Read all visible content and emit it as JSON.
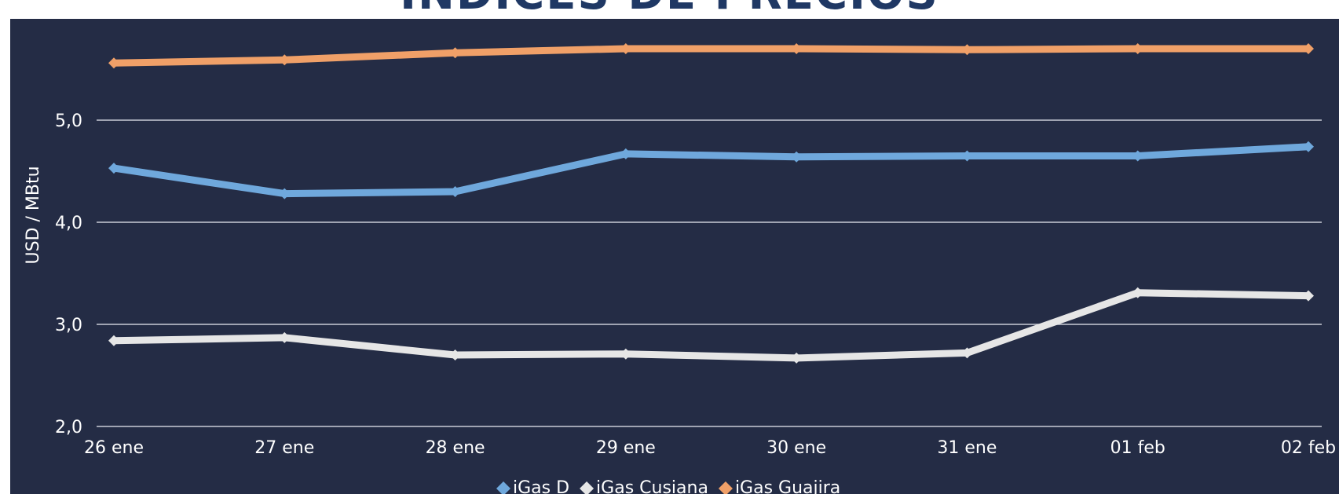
{
  "chart_data": {
    "type": "line",
    "title": "ÍNDICES DE PRECIOS",
    "xlabel": "",
    "ylabel": "USD / MBtu",
    "categories": [
      "26 ene",
      "27 ene",
      "28 ene",
      "29 ene",
      "30 ene",
      "31 ene",
      "01 feb",
      "02 feb"
    ],
    "ylim": [
      2.0,
      6.0
    ],
    "yticks": [
      "2,0",
      "3,0",
      "4,0",
      "5,0"
    ],
    "grid": true,
    "legend_position": "bottom",
    "series": [
      {
        "name": "iGas D",
        "color": "#6fa8dc",
        "values": [
          4.53,
          4.28,
          4.3,
          4.67,
          4.64,
          4.65,
          4.65,
          4.74
        ]
      },
      {
        "name": "iGas Cusiana",
        "color": "#e6e6e6",
        "values": [
          2.84,
          2.87,
          2.7,
          2.71,
          2.67,
          2.72,
          3.31,
          3.28
        ]
      },
      {
        "name": "iGas Guajira",
        "color": "#f0a068",
        "values": [
          5.56,
          5.59,
          5.66,
          5.7,
          5.7,
          5.69,
          5.7,
          5.7
        ]
      }
    ]
  }
}
